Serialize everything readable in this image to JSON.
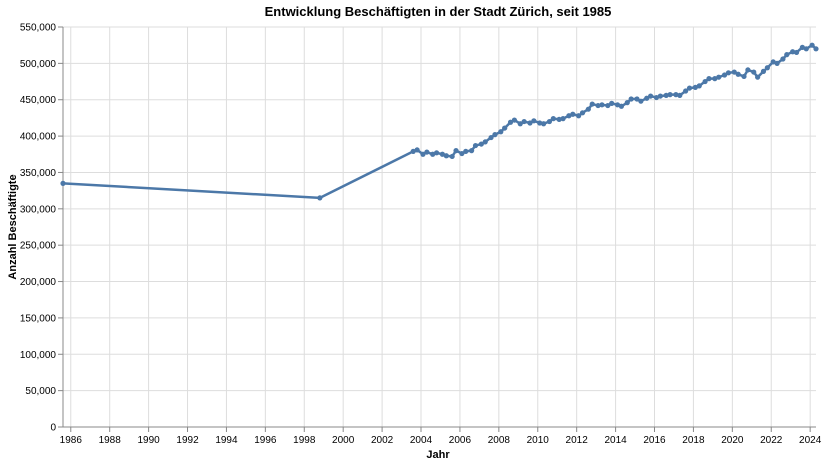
{
  "chart_data": {
    "type": "line",
    "title": "Entwicklung Beschäftigten in der Stadt Zürich, seit 1985",
    "xlabel": "Jahr",
    "ylabel": "Anzahl Beschäftigte",
    "xlim": [
      1985.6,
      2024.3
    ],
    "ylim": [
      0,
      550000
    ],
    "x_ticks": [
      "1986",
      "1988",
      "1990",
      "1992",
      "1994",
      "1996",
      "1998",
      "2000",
      "2002",
      "2004",
      "2006",
      "2008",
      "2010",
      "2012",
      "2014",
      "2016",
      "2018",
      "2020",
      "2022",
      "2024"
    ],
    "y_ticks": [
      "0",
      "50,000",
      "100,000",
      "150,000",
      "200,000",
      "250,000",
      "300,000",
      "350,000",
      "400,000",
      "450,000",
      "500,000",
      "550,000"
    ],
    "grid": true,
    "line_color": "#4c78a8",
    "series": [
      {
        "x": [
          1985.6,
          1998.8,
          2003.6,
          2003.8,
          2004.1,
          2004.3,
          2004.6,
          2004.8,
          2005.1,
          2005.3,
          2005.6,
          2005.8,
          2006.1,
          2006.3,
          2006.6,
          2006.8,
          2007.1,
          2007.3,
          2007.6,
          2007.8,
          2008.1,
          2008.3,
          2008.6,
          2008.8,
          2009.1,
          2009.3,
          2009.6,
          2009.8,
          2010.1,
          2010.3,
          2010.6,
          2010.8,
          2011.1,
          2011.3,
          2011.6,
          2011.8,
          2012.1,
          2012.3,
          2012.6,
          2012.8,
          2013.1,
          2013.3,
          2013.6,
          2013.8,
          2014.1,
          2014.3,
          2014.6,
          2014.8,
          2015.1,
          2015.3,
          2015.6,
          2015.8,
          2016.1,
          2016.3,
          2016.6,
          2016.8,
          2017.1,
          2017.3,
          2017.6,
          2017.8,
          2018.1,
          2018.3,
          2018.6,
          2018.8,
          2019.1,
          2019.3,
          2019.6,
          2019.8,
          2020.1,
          2020.3,
          2020.6,
          2020.8,
          2021.1,
          2021.3,
          2021.6,
          2021.8,
          2022.1,
          2022.3,
          2022.6,
          2022.8,
          2023.1,
          2023.3,
          2023.6,
          2023.8,
          2024.1,
          2024.3
        ],
        "y": [
          335000,
          315000,
          379000,
          381000,
          375000,
          378000,
          375000,
          377000,
          375000,
          373000,
          372000,
          380000,
          376000,
          379000,
          380000,
          387000,
          389000,
          392000,
          398000,
          402000,
          406000,
          411000,
          419000,
          422000,
          417000,
          420000,
          418000,
          421000,
          418000,
          417000,
          420000,
          424000,
          423000,
          424000,
          428000,
          430000,
          428000,
          432000,
          437000,
          444000,
          442000,
          443000,
          442000,
          445000,
          443000,
          441000,
          446000,
          451000,
          451000,
          448000,
          452000,
          455000,
          453000,
          455000,
          456000,
          457000,
          457000,
          456000,
          462000,
          466000,
          467000,
          469000,
          475000,
          479000,
          479000,
          481000,
          484000,
          487000,
          488000,
          485000,
          482000,
          491000,
          488000,
          481000,
          489000,
          494000,
          502000,
          500000,
          506000,
          512000,
          516000,
          515000,
          522000,
          520000,
          525000,
          520000
        ]
      }
    ]
  }
}
